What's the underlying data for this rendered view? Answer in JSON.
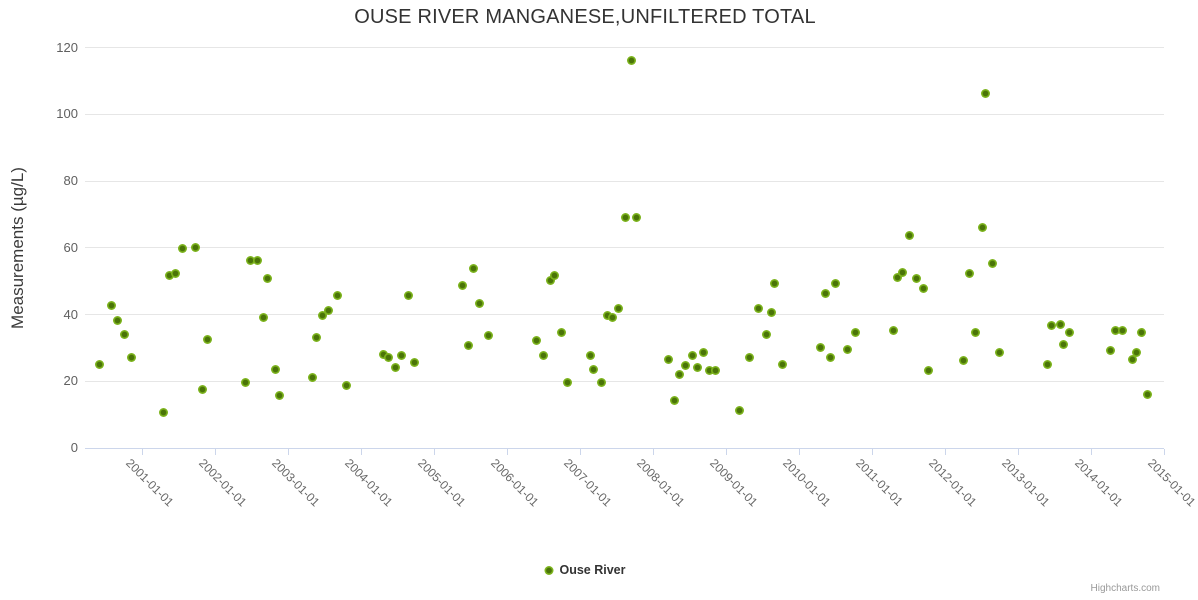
{
  "title": "OUSE RIVER MANGANESE,UNFILTERED TOTAL",
  "credits": "Highcharts.com",
  "colors": {
    "marker_outer": "#7db41d",
    "marker_inner": "#4a7408",
    "gridline": "#e6e6e6",
    "axis_line": "#ccd6eb",
    "title_text": "#333333",
    "tick_label_text": "#606060",
    "credits_text": "#999999"
  },
  "chart_data": {
    "type": "scatter",
    "title": "OUSE RIVER MANGANESE,UNFILTERED TOTAL",
    "xlabel": "",
    "ylabel": "Measurements (µg/L)",
    "grid": "horizontal-only",
    "legend_position": "bottom-center",
    "x_axis": {
      "kind": "datetime",
      "min_decimal_year": 2000.219,
      "max_decimal_year": 2015.0,
      "tick_years": [
        2001,
        2002,
        2003,
        2004,
        2005,
        2006,
        2007,
        2008,
        2009,
        2010,
        2011,
        2012,
        2013,
        2014,
        2015
      ],
      "tick_labels": [
        "2001-01-01",
        "2002-01-01",
        "2003-01-01",
        "2004-01-01",
        "2005-01-01",
        "2006-01-01",
        "2007-01-01",
        "2008-01-01",
        "2009-01-01",
        "2010-01-01",
        "2011-01-01",
        "2012-01-01",
        "2013-01-01",
        "2014-01-01",
        "2015-01-01"
      ],
      "label_rotation_deg": 45
    },
    "y_axis": {
      "min": 0,
      "max": 120,
      "tick_interval": 20,
      "ticks": [
        0,
        20,
        40,
        60,
        80,
        100,
        120
      ]
    },
    "legend": [
      {
        "name": "Ouse River"
      }
    ],
    "series": [
      {
        "name": "Ouse River",
        "points_x_decimal_year_y_ugL": [
          [
            2000.42,
            25
          ],
          [
            2000.58,
            42.5
          ],
          [
            2000.67,
            38
          ],
          [
            2000.76,
            34
          ],
          [
            2000.86,
            27
          ],
          [
            2001.3,
            10.5
          ],
          [
            2001.37,
            51.5
          ],
          [
            2001.46,
            52
          ],
          [
            2001.56,
            59.5
          ],
          [
            2001.73,
            60
          ],
          [
            2001.83,
            17.5
          ],
          [
            2001.9,
            32.5
          ],
          [
            2002.42,
            19.5
          ],
          [
            2002.48,
            56
          ],
          [
            2002.58,
            56
          ],
          [
            2002.67,
            39
          ],
          [
            2002.72,
            50.5
          ],
          [
            2002.83,
            23.5
          ],
          [
            2002.89,
            15.5
          ],
          [
            2003.34,
            21
          ],
          [
            2003.39,
            33
          ],
          [
            2003.47,
            39.5
          ],
          [
            2003.55,
            41
          ],
          [
            2003.68,
            45.5
          ],
          [
            2003.8,
            18.5
          ],
          [
            2004.31,
            28
          ],
          [
            2004.38,
            27
          ],
          [
            2004.47,
            24
          ],
          [
            2004.55,
            27.5
          ],
          [
            2004.65,
            45.5
          ],
          [
            2004.73,
            25.5
          ],
          [
            2005.39,
            48.5
          ],
          [
            2005.47,
            30.5
          ],
          [
            2005.54,
            53.5
          ],
          [
            2005.62,
            43
          ],
          [
            2005.75,
            33.5
          ],
          [
            2006.4,
            32
          ],
          [
            2006.5,
            27.5
          ],
          [
            2006.59,
            50
          ],
          [
            2006.65,
            51.5
          ],
          [
            2006.75,
            34.5
          ],
          [
            2006.83,
            19.5
          ],
          [
            2007.14,
            27.5
          ],
          [
            2007.19,
            23.5
          ],
          [
            2007.29,
            19.5
          ],
          [
            2007.37,
            39.5
          ],
          [
            2007.45,
            39
          ],
          [
            2007.53,
            41.5
          ],
          [
            2007.63,
            69
          ],
          [
            2007.7,
            116
          ],
          [
            2007.78,
            69
          ],
          [
            2008.21,
            26.5
          ],
          [
            2008.3,
            14
          ],
          [
            2008.36,
            22
          ],
          [
            2008.45,
            24.5
          ],
          [
            2008.54,
            27.5
          ],
          [
            2008.61,
            24
          ],
          [
            2008.69,
            28.5
          ],
          [
            2008.78,
            23
          ],
          [
            2008.85,
            23
          ],
          [
            2009.18,
            11
          ],
          [
            2009.32,
            27
          ],
          [
            2009.45,
            41.5
          ],
          [
            2009.55,
            34
          ],
          [
            2009.62,
            40.5
          ],
          [
            2009.66,
            49
          ],
          [
            2009.77,
            25
          ],
          [
            2010.29,
            30
          ],
          [
            2010.36,
            46
          ],
          [
            2010.43,
            27
          ],
          [
            2010.5,
            49
          ],
          [
            2010.67,
            29.5
          ],
          [
            2010.78,
            34.5
          ],
          [
            2011.3,
            35
          ],
          [
            2011.35,
            51
          ],
          [
            2011.42,
            52.5
          ],
          [
            2011.52,
            63.5
          ],
          [
            2011.61,
            50.5
          ],
          [
            2011.7,
            47.5
          ],
          [
            2011.77,
            23
          ],
          [
            2012.25,
            26
          ],
          [
            2012.34,
            52
          ],
          [
            2012.42,
            34.5
          ],
          [
            2012.52,
            66
          ],
          [
            2012.56,
            106
          ],
          [
            2012.65,
            55
          ],
          [
            2012.74,
            28.5
          ],
          [
            2013.4,
            25
          ],
          [
            2013.46,
            36.5
          ],
          [
            2013.58,
            37
          ],
          [
            2013.63,
            31
          ],
          [
            2013.71,
            34.5
          ],
          [
            2014.27,
            29
          ],
          [
            2014.34,
            35
          ],
          [
            2014.43,
            35
          ],
          [
            2014.57,
            26.5
          ],
          [
            2014.63,
            28.5
          ],
          [
            2014.69,
            34.5
          ],
          [
            2014.78,
            16
          ]
        ]
      }
    ]
  }
}
